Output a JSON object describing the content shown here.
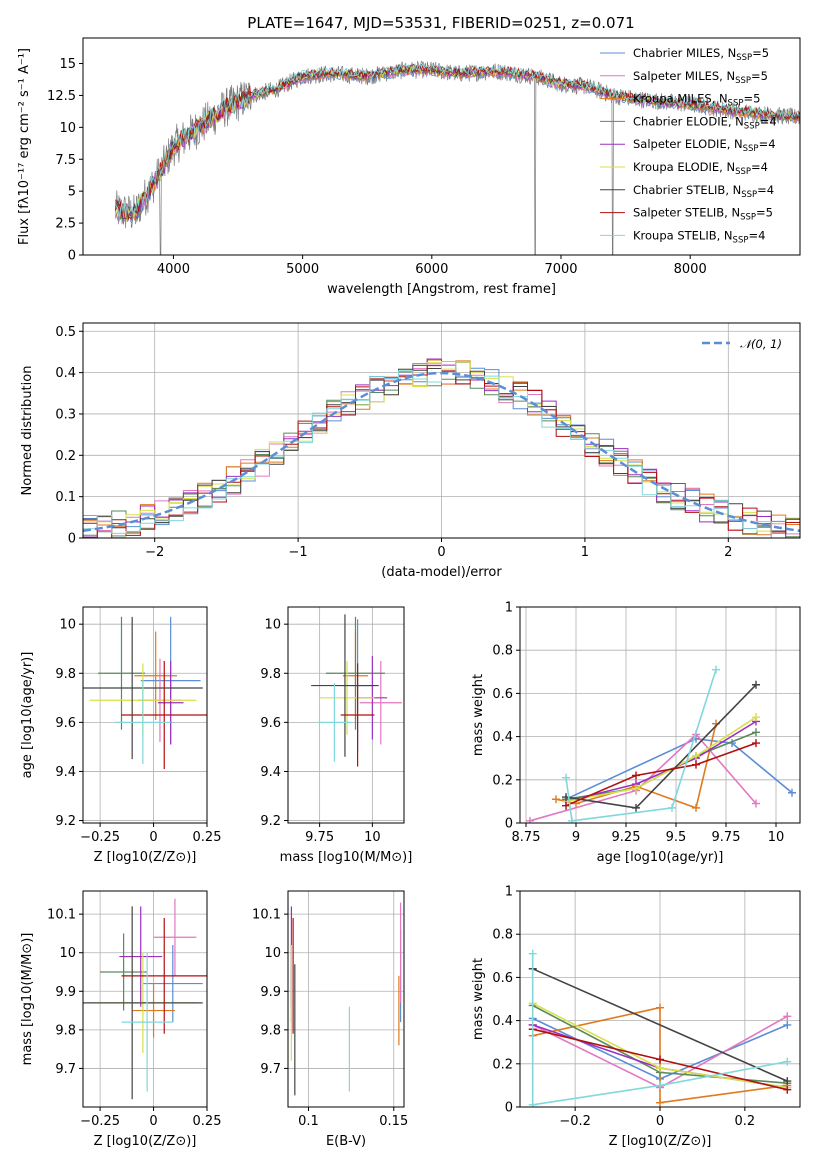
{
  "figure": {
    "title": "PLATE=1647, MJD=53531, FIBERID=0251, z=0.071"
  },
  "colors": {
    "Chabrier MILES": "#5b8ed6",
    "Salpeter MILES": "#e377c2",
    "Kroupa MILES": "#e07a1f",
    "Chabrier ELODIE": "#5a8a5a",
    "Salpeter ELODIE": "#9b30c0",
    "Kroupa ELODIE": "#d8e04a",
    "Chabrier STELIB": "#444444",
    "Salpeter STELIB": "#b01010",
    "Kroupa STELIB": "#80d8dc"
  },
  "chart_data": [
    {
      "id": "spectrum",
      "type": "line",
      "xlabel": "wavelength [Angstrom, rest frame]",
      "ylabel": "Flux [fλ10⁻¹⁷ erg cm⁻² s⁻¹ A⁻¹]",
      "xlim": [
        3300,
        8850
      ],
      "ylim": [
        0,
        17
      ],
      "xticks": [
        4000,
        5000,
        6000,
        7000,
        8000
      ],
      "yticks": [
        0.0,
        2.5,
        5.0,
        7.5,
        10.0,
        12.5,
        15.0
      ],
      "grid": false,
      "legend_loc": "right",
      "data_anchors": {
        "x": [
          3550,
          3700,
          3900,
          4000,
          4200,
          4400,
          4600,
          4800,
          5000,
          5200,
          5500,
          5800,
          6000,
          6200,
          6500,
          6800,
          7000,
          7200,
          7400,
          7600,
          7800,
          8000,
          8200,
          8400,
          8600,
          8800
        ],
        "y": [
          3.5,
          3.2,
          6.5,
          8.5,
          10.0,
          11.5,
          12.5,
          13.0,
          14.0,
          14.2,
          14.0,
          14.5,
          14.5,
          14.2,
          14.4,
          14.0,
          13.4,
          13.2,
          12.5,
          12.2,
          12.0,
          11.8,
          11.5,
          11.2,
          11.0,
          10.8
        ]
      },
      "legend": [
        "Chabrier MILES, N_SSP=5",
        "Salpeter MILES, N_SSP=5",
        "Kroupa MILES, N_SSP=5",
        "Chabrier ELODIE, N_SSP=4",
        "Salpeter ELODIE, N_SSP=4",
        "Kroupa ELODIE, N_SSP=4",
        "Chabrier STELIB, N_SSP=4",
        "Salpeter STELIB, N_SSP=5",
        "Kroupa STELIB, N_SSP=4"
      ]
    },
    {
      "id": "residuals",
      "type": "line",
      "xlabel": "(data-model)/error",
      "ylabel": "Normed distribution",
      "xlim": [
        -2.5,
        2.5
      ],
      "ylim": [
        0.0,
        0.52
      ],
      "xticks": [
        -2,
        -1,
        0,
        1,
        2
      ],
      "yticks": [
        0.0,
        0.1,
        0.2,
        0.3,
        0.4,
        0.5
      ],
      "grid": true,
      "legend_loc": "top-right",
      "legend": [
        "N(0,1)"
      ],
      "normal_curve": {
        "mean": 0,
        "sigma": 1
      }
    },
    {
      "id": "age-vs-z",
      "type": "scatter",
      "xlabel": "Z [log10(Z/Z⊙)]",
      "ylabel": "age  [log10(age/yr)]",
      "xlim": [
        -0.33,
        0.25
      ],
      "ylim": [
        9.19,
        10.07
      ],
      "xticks": [
        -0.25,
        0.0,
        0.25
      ],
      "yticks": [
        9.2,
        9.4,
        9.6,
        9.8,
        10.0
      ],
      "grid": true,
      "points": [
        {
          "model": "Chabrier MILES",
          "x": 0.08,
          "y": 9.77,
          "xerr": 0.14,
          "yerr": 0.26
        },
        {
          "model": "Salpeter MILES",
          "x": 0.03,
          "y": 9.69,
          "xerr": 0.1,
          "yerr": 0.17
        },
        {
          "model": "Kroupa MILES",
          "x": 0.01,
          "y": 9.79,
          "xerr": 0.1,
          "yerr": 0.18
        },
        {
          "model": "Chabrier ELODIE",
          "x": -0.15,
          "y": 9.8,
          "xerr": 0.11,
          "yerr": 0.23
        },
        {
          "model": "Salpeter ELODIE",
          "x": 0.08,
          "y": 9.68,
          "xerr": 0.06,
          "yerr": 0.17
        },
        {
          "model": "Kroupa ELODIE",
          "x": -0.05,
          "y": 9.69,
          "xerr": 0.25,
          "yerr": 0.15
        },
        {
          "model": "Chabrier STELIB",
          "x": -0.1,
          "y": 9.74,
          "xerr": 0.33,
          "yerr": 0.29
        },
        {
          "model": "Salpeter STELIB",
          "x": 0.05,
          "y": 9.63,
          "xerr": 0.2,
          "yerr": 0.22
        },
        {
          "model": "Kroupa STELIB",
          "x": -0.05,
          "y": 9.6,
          "xerr": 0.13,
          "yerr": 0.17
        }
      ]
    },
    {
      "id": "age-vs-mass",
      "type": "scatter",
      "xlabel": "mass [log10(M/M⊙)]",
      "ylabel": "",
      "xlim": [
        9.6,
        10.15
      ],
      "ylim": [
        9.19,
        10.07
      ],
      "xticks": [
        9.75,
        10.0
      ],
      "yticks": [
        9.2,
        9.4,
        9.6,
        9.8,
        10.0
      ],
      "grid": true,
      "points": [
        {
          "model": "Chabrier MILES",
          "x": 9.93,
          "y": 9.75,
          "xerr": 0.08,
          "yerr": 0.27
        },
        {
          "model": "Salpeter MILES",
          "x": 10.04,
          "y": 9.68,
          "xerr": 0.1,
          "yerr": 0.17
        },
        {
          "model": "Kroupa MILES",
          "x": 9.92,
          "y": 9.79,
          "xerr": 0.06,
          "yerr": 0.18
        },
        {
          "model": "Chabrier ELODIE",
          "x": 9.92,
          "y": 9.8,
          "xerr": 0.14,
          "yerr": 0.23
        },
        {
          "model": "Salpeter ELODIE",
          "x": 10.0,
          "y": 9.7,
          "xerr": 0.07,
          "yerr": 0.17
        },
        {
          "model": "Kroupa ELODIE",
          "x": 9.88,
          "y": 9.7,
          "xerr": 0.13,
          "yerr": 0.15
        },
        {
          "model": "Chabrier STELIB",
          "x": 9.87,
          "y": 9.75,
          "xerr": 0.16,
          "yerr": 0.29
        },
        {
          "model": "Salpeter STELIB",
          "x": 9.93,
          "y": 9.63,
          "xerr": 0.08,
          "yerr": 0.21
        },
        {
          "model": "Kroupa STELIB",
          "x": 9.82,
          "y": 9.6,
          "xerr": 0.08,
          "yerr": 0.16
        }
      ]
    },
    {
      "id": "weight-vs-age",
      "type": "line",
      "xlabel": "age  [log10(age/yr)]",
      "ylabel": "mass weight",
      "xlim": [
        8.72,
        10.12
      ],
      "ylim": [
        0.0,
        1.0
      ],
      "xticks": [
        8.75,
        9.0,
        9.25,
        9.5,
        9.75,
        10.0
      ],
      "yticks": [
        0.0,
        0.2,
        0.4,
        0.6,
        0.8,
        1.0
      ],
      "grid": true,
      "series": [
        {
          "model": "Chabrier MILES",
          "x": [
            8.95,
            9.6,
            9.78,
            10.08
          ],
          "y": [
            0.11,
            0.39,
            0.37,
            0.14
          ]
        },
        {
          "model": "Salpeter MILES",
          "x": [
            8.77,
            9.3,
            9.6,
            9.9
          ],
          "y": [
            0.01,
            0.15,
            0.41,
            0.09
          ]
        },
        {
          "model": "Kroupa MILES",
          "x": [
            8.9,
            9.0,
            9.3,
            9.6,
            9.7
          ],
          "y": [
            0.11,
            0.09,
            0.17,
            0.07,
            0.46
          ]
        },
        {
          "model": "Chabrier ELODIE",
          "x": [
            8.95,
            9.3,
            9.6,
            9.9
          ],
          "y": [
            0.11,
            0.16,
            0.31,
            0.42
          ]
        },
        {
          "model": "Salpeter ELODIE",
          "x": [
            8.95,
            9.3,
            9.6,
            9.9
          ],
          "y": [
            0.1,
            0.18,
            0.3,
            0.47
          ]
        },
        {
          "model": "Kroupa ELODIE",
          "x": [
            8.95,
            9.3,
            9.6,
            9.9
          ],
          "y": [
            0.1,
            0.16,
            0.31,
            0.49
          ]
        },
        {
          "model": "Chabrier STELIB",
          "x": [
            8.95,
            9.3,
            9.9
          ],
          "y": [
            0.12,
            0.07,
            0.64
          ]
        },
        {
          "model": "Salpeter STELIB",
          "x": [
            8.95,
            9.3,
            9.6,
            9.9
          ],
          "y": [
            0.08,
            0.22,
            0.27,
            0.37
          ]
        },
        {
          "model": "Kroupa STELIB",
          "x": [
            8.95,
            8.98,
            9.48,
            9.7
          ],
          "y": [
            0.21,
            0.01,
            0.07,
            0.71
          ]
        }
      ]
    },
    {
      "id": "mass-vs-z",
      "type": "scatter",
      "xlabel": "Z [log10(Z/Z⊙)]",
      "ylabel": "mass [log10(M/M⊙)]",
      "xlim": [
        -0.33,
        0.25
      ],
      "ylim": [
        9.6,
        10.16
      ],
      "xticks": [
        -0.25,
        0.0,
        0.25
      ],
      "yticks": [
        9.7,
        9.8,
        9.9,
        10.0,
        10.1
      ],
      "grid": true,
      "points": [
        {
          "model": "Chabrier MILES",
          "x": 0.09,
          "y": 9.92,
          "xerr": 0.14,
          "yerr": 0.1
        },
        {
          "model": "Salpeter MILES",
          "x": 0.1,
          "y": 10.04,
          "xerr": 0.1,
          "yerr": 0.1
        },
        {
          "model": "Kroupa MILES",
          "x": 0.0,
          "y": 9.85,
          "xerr": 0.1,
          "yerr": 0.07
        },
        {
          "model": "Chabrier ELODIE",
          "x": -0.14,
          "y": 9.95,
          "xerr": 0.11,
          "yerr": 0.1
        },
        {
          "model": "Salpeter ELODIE",
          "x": -0.06,
          "y": 9.99,
          "xerr": 0.1,
          "yerr": 0.13
        },
        {
          "model": "Kroupa ELODIE",
          "x": -0.05,
          "y": 9.87,
          "xerr": 0.25,
          "yerr": 0.13
        },
        {
          "model": "Chabrier STELIB",
          "x": -0.1,
          "y": 9.87,
          "xerr": 0.33,
          "yerr": 0.25
        },
        {
          "model": "Salpeter STELIB",
          "x": 0.05,
          "y": 9.94,
          "xerr": 0.2,
          "yerr": 0.15
        },
        {
          "model": "Kroupa STELIB",
          "x": -0.03,
          "y": 9.82,
          "xerr": 0.12,
          "yerr": 0.18
        }
      ]
    },
    {
      "id": "mass-vs-ebv",
      "type": "scatter",
      "xlabel": "E(B-V)",
      "ylabel": "",
      "xlim": [
        0.088,
        0.156
      ],
      "ylim": [
        9.6,
        10.16
      ],
      "xticks": [
        0.1,
        0.15
      ],
      "yticks": [
        9.7,
        9.8,
        9.9,
        10.0,
        10.1
      ],
      "grid": true,
      "points": [
        {
          "model": "Chabrier MILES",
          "x": 0.154,
          "y": 9.94,
          "yerr": 0.12
        },
        {
          "model": "Salpeter MILES",
          "x": 0.154,
          "y": 10.0,
          "yerr": 0.13
        },
        {
          "model": "Kroupa MILES",
          "x": 0.153,
          "y": 9.85,
          "yerr": 0.09
        },
        {
          "model": "Chabrier ELODIE",
          "x": 0.09,
          "y": 9.92,
          "yerr": 0.1
        },
        {
          "model": "Salpeter ELODIE",
          "x": 0.09,
          "y": 9.99,
          "yerr": 0.13
        },
        {
          "model": "Kroupa ELODIE",
          "x": 0.09,
          "y": 9.87,
          "yerr": 0.15
        },
        {
          "model": "Chabrier STELIB",
          "x": 0.092,
          "y": 9.8,
          "yerr": 0.17
        },
        {
          "model": "Salpeter STELIB",
          "x": 0.091,
          "y": 9.94,
          "yerr": 0.15
        },
        {
          "model": "Kroupa STELIB",
          "x": 0.124,
          "y": 9.75,
          "yerr": 0.11
        }
      ]
    },
    {
      "id": "weight-vs-z",
      "type": "line",
      "xlabel": "Z [log10(Z/Z⊙)]",
      "ylabel": "mass weight",
      "xlim": [
        -0.33,
        0.33
      ],
      "ylim": [
        0.0,
        1.0
      ],
      "xticks": [
        -0.2,
        0.0,
        0.2
      ],
      "yticks": [
        0.0,
        0.2,
        0.4,
        0.6,
        0.8,
        1.0
      ],
      "grid": true,
      "series": [
        {
          "model": "Chabrier MILES",
          "x": [
            -0.3,
            0.0,
            0.3
          ],
          "y": [
            0.41,
            0.13,
            0.38
          ]
        },
        {
          "model": "Salpeter MILES",
          "x": [
            -0.3,
            0.0,
            0.3
          ],
          "y": [
            0.38,
            0.09,
            0.42
          ]
        },
        {
          "model": "Kroupa MILES",
          "x": [
            -0.3,
            0.0,
            0.0,
            0.3
          ],
          "y": [
            0.33,
            0.46,
            0.02,
            0.1
          ]
        },
        {
          "model": "Chabrier ELODIE",
          "x": [
            -0.3,
            0.0,
            0.3
          ],
          "y": [
            0.47,
            0.16,
            0.11
          ]
        },
        {
          "model": "Salpeter ELODIE",
          "x": [
            -0.3,
            0.0,
            0.3
          ],
          "y": [
            0.38,
            0.18,
            0.09
          ]
        },
        {
          "model": "Kroupa ELODIE",
          "x": [
            -0.3,
            0.0,
            0.3
          ],
          "y": [
            0.48,
            0.18,
            0.09
          ]
        },
        {
          "model": "Chabrier STELIB",
          "x": [
            -0.3,
            0.3
          ],
          "y": [
            0.64,
            0.12
          ]
        },
        {
          "model": "Salpeter STELIB",
          "x": [
            -0.3,
            0.0,
            0.3
          ],
          "y": [
            0.36,
            0.22,
            0.08
          ]
        },
        {
          "model": "Kroupa STELIB",
          "x": [
            -0.3,
            -0.3,
            0.0,
            0.3
          ],
          "y": [
            0.71,
            0.01,
            0.1,
            0.21
          ]
        }
      ]
    }
  ]
}
